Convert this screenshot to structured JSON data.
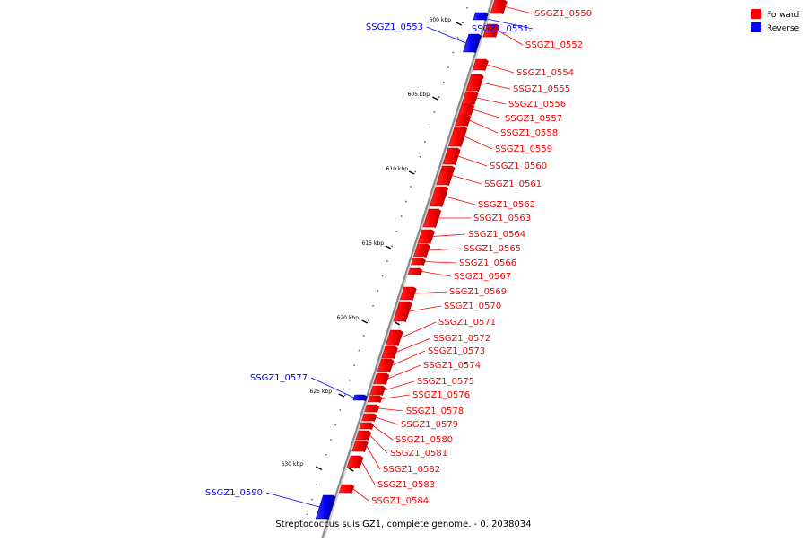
{
  "caption": "Streptococcus suis GZ1, complete genome. - 0..2038034",
  "legend": {
    "items": [
      {
        "label": "Forward",
        "color": "#ff0000"
      },
      {
        "label": "Reverse",
        "color": "#0000ff"
      }
    ]
  },
  "colors": {
    "forward": "#ff0000",
    "forward_dark": "#cc0000",
    "reverse": "#0000ff",
    "reverse_dark": "#0000aa",
    "backbone": "#888888"
  },
  "ticks": [
    {
      "label": "600 kbp",
      "kbp": 600
    },
    {
      "label": "605 kbp",
      "kbp": 605
    },
    {
      "label": "610 kbp",
      "kbp": 610
    },
    {
      "label": "615 kbp",
      "kbp": 615
    },
    {
      "label": "620 kbp",
      "kbp": 620
    },
    {
      "label": "625 kbp",
      "kbp": 625
    },
    {
      "label": "630 kbp",
      "kbp": 630
    }
  ],
  "genes": [
    {
      "name": "SSGZ1_0550",
      "strand": "forward"
    },
    {
      "name": "SSGZ1_0551",
      "strand": "reverse"
    },
    {
      "name": "SSGZ1_0552",
      "strand": "forward"
    },
    {
      "name": "SSGZ1_0553",
      "strand": "reverse"
    },
    {
      "name": "SSGZ1_0554",
      "strand": "forward"
    },
    {
      "name": "SSGZ1_0555",
      "strand": "forward"
    },
    {
      "name": "SSGZ1_0556",
      "strand": "forward"
    },
    {
      "name": "SSGZ1_0557",
      "strand": "forward"
    },
    {
      "name": "SSGZ1_0558",
      "strand": "forward"
    },
    {
      "name": "SSGZ1_0559",
      "strand": "forward"
    },
    {
      "name": "SSGZ1_0560",
      "strand": "forward"
    },
    {
      "name": "SSGZ1_0561",
      "strand": "forward"
    },
    {
      "name": "SSGZ1_0562",
      "strand": "forward"
    },
    {
      "name": "SSGZ1_0563",
      "strand": "forward"
    },
    {
      "name": "SSGZ1_0564",
      "strand": "forward"
    },
    {
      "name": "SSGZ1_0565",
      "strand": "forward"
    },
    {
      "name": "SSGZ1_0566",
      "strand": "forward"
    },
    {
      "name": "SSGZ1_0567",
      "strand": "forward"
    },
    {
      "name": "SSGZ1_0569",
      "strand": "forward"
    },
    {
      "name": "SSGZ1_0570",
      "strand": "forward"
    },
    {
      "name": "SSGZ1_0571",
      "strand": "forward"
    },
    {
      "name": "SSGZ1_0572",
      "strand": "forward"
    },
    {
      "name": "SSGZ1_0573",
      "strand": "forward"
    },
    {
      "name": "SSGZ1_0574",
      "strand": "forward"
    },
    {
      "name": "SSGZ1_0575",
      "strand": "forward"
    },
    {
      "name": "SSGZ1_0576",
      "strand": "forward"
    },
    {
      "name": "SSGZ1_0577",
      "strand": "reverse"
    },
    {
      "name": "SSGZ1_0578",
      "strand": "forward"
    },
    {
      "name": "SSGZ1_0579",
      "strand": "forward"
    },
    {
      "name": "SSGZ1_0580",
      "strand": "forward"
    },
    {
      "name": "SSGZ1_0581",
      "strand": "forward"
    },
    {
      "name": "SSGZ1_0582",
      "strand": "forward"
    },
    {
      "name": "SSGZ1_0583",
      "strand": "forward"
    },
    {
      "name": "SSGZ1_0584",
      "strand": "forward"
    },
    {
      "name": "SSGZ1_0590",
      "strand": "reverse"
    }
  ]
}
